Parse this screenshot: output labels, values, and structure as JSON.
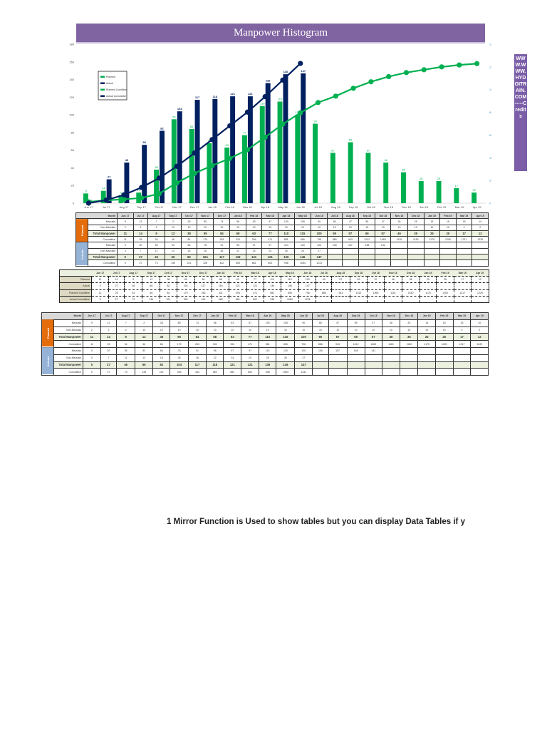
{
  "title": "Manpower Histogram",
  "side_credit": "WWW.WWW.HYDOITRAIN.COM-----Credits",
  "footnote": "1 Mirror Function is Used to show tables but you can display Data Tables if y",
  "colors": {
    "title_bar": "#8064a2",
    "planned": "#00b050",
    "actual": "#002060",
    "planned_section": "#e46c0a",
    "actual_section": "#95b3d7",
    "total_row": "#ebf1de"
  },
  "chart_data": {
    "type": "bar",
    "title": "Manpower Histogram",
    "categories": [
      "Jun 17",
      "Jul 17",
      "Aug 17",
      "Sep 17",
      "Oct 17",
      "Nov 17",
      "Dec 17",
      "Jan 18",
      "Feb 18",
      "Mar 18",
      "Apr 18",
      "May 18",
      "Jun 18",
      "Jul 18",
      "Aug 18",
      "Sep 18",
      "Oct 18",
      "Nov 18",
      "Dec 18",
      "Jan 19",
      "Feb 19",
      "Mar 19",
      "Apr 19"
    ],
    "series": [
      {
        "name": "Planned",
        "type": "bar",
        "axis": "left",
        "color": "#00b050",
        "values": [
          11,
          14,
          9,
          12,
          38,
          95,
          84,
          68,
          63,
          77,
          110,
          115,
          100,
          90,
          57,
          69,
          57,
          46,
          35,
          25,
          25,
          17,
          12
        ]
      },
      {
        "name": "Actual",
        "type": "bar",
        "axis": "left",
        "color": "#002060",
        "values": [
          0,
          27,
          46,
          66,
          82,
          104,
          117,
          118,
          121,
          121,
          136,
          146,
          147
        ]
      },
      {
        "name": "Planned Cumilitive",
        "type": "line",
        "axis": "right",
        "color": "#00b050",
        "values": [
          11,
          25,
          34,
          46,
          84,
          179,
          263,
          331,
          394,
          471,
          581,
          696,
          796,
          886,
          943,
          1012,
          1069,
          1115,
          1150,
          1175,
          1200,
          1217,
          1229
        ]
      },
      {
        "name": "Actual Cumulative",
        "type": "line",
        "axis": "right",
        "color": "#002060",
        "values": [
          0,
          27,
          73,
          139,
          221,
          325,
          442,
          560,
          681,
          802,
          938,
          1084,
          1231
        ]
      }
    ],
    "ylim": [
      0,
      180
    ],
    "yticks": [
      0,
      20,
      40,
      60,
      80,
      100,
      120,
      140,
      160,
      180
    ],
    "y2lim": [
      0,
      1400
    ],
    "y2ticks": [
      0,
      200,
      400,
      600,
      800,
      1000,
      1200,
      1400
    ],
    "legend_position": "upper-left",
    "grid": false
  },
  "legend": [
    "Planned",
    "Actual",
    "Planned Cumilitive",
    "Actual Cumulative"
  ],
  "table1": {
    "month_header": "Month",
    "sections": [
      {
        "label": "Planned",
        "rows": [
          {
            "label": "Manuals",
            "values": [
              9,
              12,
              7,
              2,
              28,
              85,
              74,
              58,
              53,
              67,
              100,
              105,
              90,
              80,
              47,
              59,
              47,
              36,
              25,
              15,
              15,
              15,
              10
            ]
          },
          {
            "label": "Non-Manuals",
            "values": [
              2,
              2,
              2,
              10,
              10,
              10,
              10,
              10,
              10,
              10,
              10,
              10,
              10,
              10,
              10,
              10,
              10,
              10,
              10,
              10,
              10,
              2,
              2
            ]
          },
          {
            "label": "Total Manpower",
            "values": [
              11,
              14,
              9,
              12,
              38,
              95,
              84,
              68,
              63,
              77,
              110,
              115,
              100,
              90,
              57,
              69,
              57,
              46,
              35,
              25,
              25,
              17,
              12
            ],
            "total": true
          },
          {
            "label": "Cumulative",
            "values": [
              11,
              25,
              34,
              46,
              84,
              179,
              263,
              331,
              394,
              471,
              581,
              696,
              796,
              886,
              943,
              1012,
              1069,
              1115,
              1150,
              1175,
              1200,
              1217,
              1229
            ]
          }
        ]
      },
      {
        "label": "Actuals",
        "rows": [
          {
            "label": "Manuals",
            "values": [
              0,
              20,
              35,
              53,
              64,
              78,
              91,
              96,
              97,
              97,
              110,
              120,
              120,
              150,
              157,
              148,
              142,
              "",
              "",
              "",
              "",
              "",
              ""
            ]
          },
          {
            "label": "Non-Manuals",
            "values": [
              0,
              7,
              11,
              13,
              18,
              26,
              26,
              22,
              24,
              24,
              26,
              26,
              27,
              "",
              "",
              "",
              "",
              "",
              "",
              "",
              "",
              "",
              ""
            ]
          },
          {
            "label": "Total Manpower",
            "values": [
              0,
              27,
              46,
              66,
              82,
              104,
              117,
              118,
              121,
              121,
              136,
              146,
              147,
              "",
              "",
              "",
              "",
              "",
              "",
              "",
              "",
              "",
              ""
            ],
            "total": true
          },
          {
            "label": "Cumulative",
            "values": [
              0,
              27,
              73,
              139,
              221,
              325,
              442,
              560,
              681,
              802,
              938,
              1084,
              1231,
              "",
              "",
              "",
              "",
              "",
              "",
              "",
              "",
              "",
              ""
            ]
          }
        ]
      }
    ]
  },
  "table2": {
    "rows": [
      {
        "label": "Planned",
        "values": [
          11,
          14,
          9,
          12,
          38,
          95,
          84,
          68,
          63,
          77,
          110,
          115,
          100,
          90,
          57,
          69,
          57,
          46,
          35,
          25,
          25,
          17,
          12
        ]
      },
      {
        "label": "Actual",
        "values": [
          0,
          27,
          46,
          66,
          82,
          104,
          117,
          118,
          121,
          121,
          136,
          146,
          147,
          "",
          "",
          "",
          "",
          "",
          "",
          "",
          "",
          "",
          ""
        ]
      },
      {
        "label": "Planned Cumilitive",
        "values": [
          11,
          25,
          34,
          46,
          84,
          179,
          263,
          331,
          394,
          471,
          581,
          696,
          796,
          886,
          943,
          1012,
          1069,
          1115,
          1150,
          1175,
          1200,
          1217,
          1229
        ]
      },
      {
        "label": "Actual Cumulative",
        "values": [
          0,
          27,
          73,
          139,
          221,
          325,
          442,
          560,
          681,
          802,
          938,
          1084,
          1231,
          "",
          "",
          "",
          "",
          "",
          "",
          "",
          "",
          "",
          ""
        ]
      }
    ]
  }
}
